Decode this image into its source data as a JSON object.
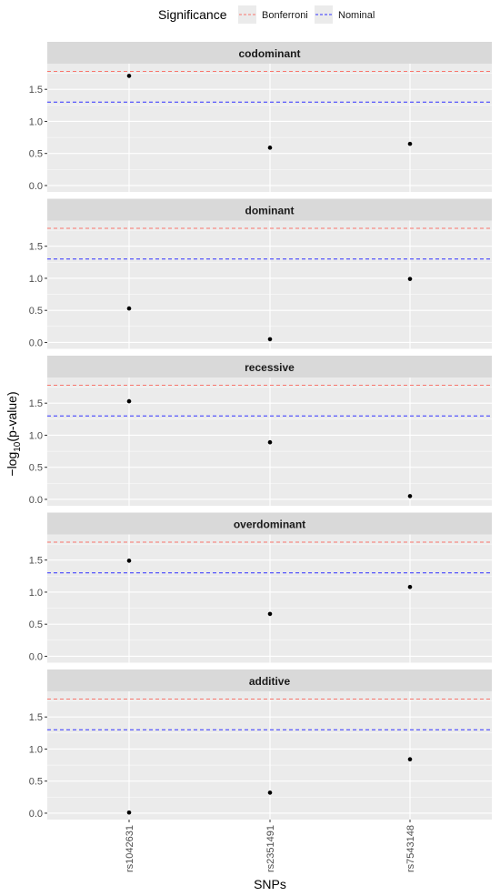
{
  "chart_data": {
    "type": "scatter",
    "facet_by": "genetic model",
    "xlabel": "SNPs",
    "ylabel": "−log10(p-value)",
    "ylabel_main": "−log",
    "ylabel_sub": "10",
    "ylabel_rest": "(p-value)",
    "categories": [
      "rs1042631",
      "rs2351491",
      "rs7543148"
    ],
    "ylim": [
      -0.1,
      1.9
    ],
    "yticks": [
      0.0,
      0.5,
      1.0,
      1.5
    ],
    "ytick_labels": [
      "0.0",
      "0.5",
      "1.0",
      "1.5"
    ],
    "reference_lines": [
      {
        "name": "Bonferroni",
        "value": 1.78,
        "color": "#f8766d",
        "style": "dashed"
      },
      {
        "name": "Nominal",
        "value": 1.3,
        "color": "#3333ff",
        "style": "dashed"
      }
    ],
    "legend": {
      "title": "Significance",
      "position": "top",
      "entries": [
        "Bonferroni",
        "Nominal"
      ]
    },
    "panels": [
      {
        "name": "codominant",
        "values": [
          1.71,
          0.59,
          0.65
        ]
      },
      {
        "name": "dominant",
        "values": [
          0.53,
          0.05,
          0.99
        ]
      },
      {
        "name": "recessive",
        "values": [
          1.53,
          0.89,
          0.05
        ]
      },
      {
        "name": "overdominant",
        "values": [
          1.49,
          0.66,
          1.08
        ]
      },
      {
        "name": "additive",
        "values": [
          0.01,
          0.32,
          0.84
        ]
      }
    ],
    "panel_background": "#ebebeb",
    "strip_background": "#d9d9d9",
    "grid_color": "#ffffff",
    "point_color": "#000000",
    "grid": true
  }
}
